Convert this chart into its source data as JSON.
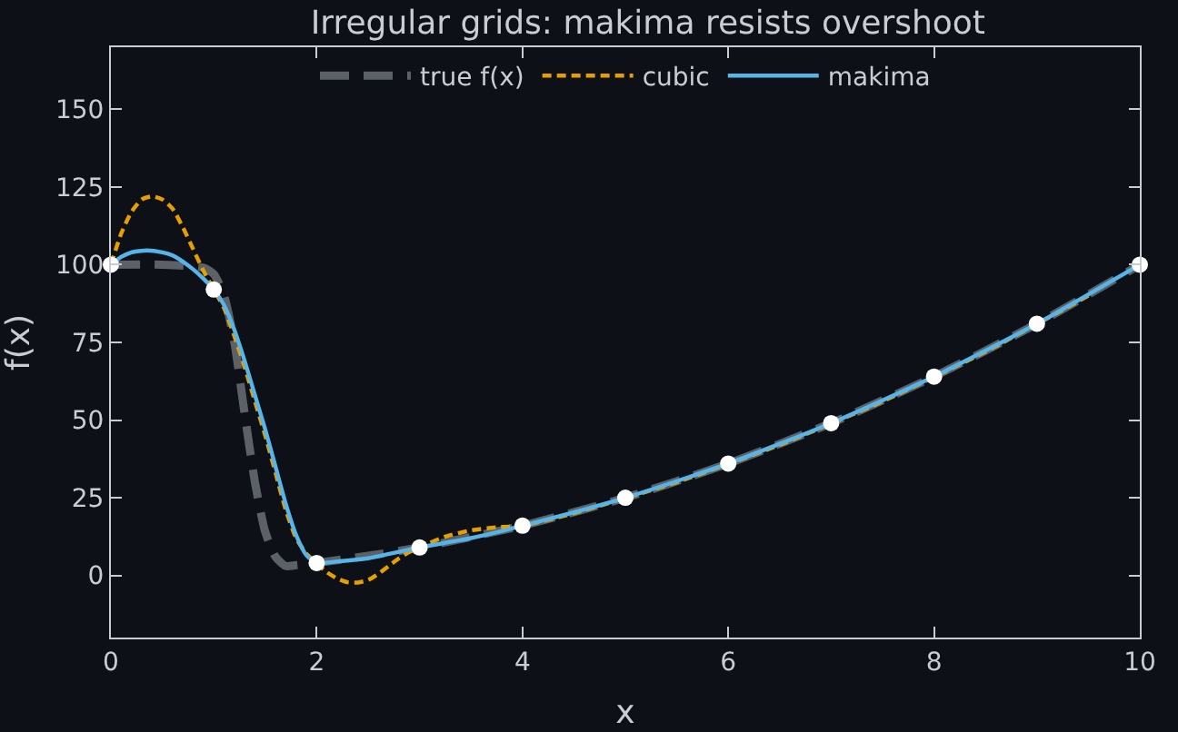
{
  "chart_data": {
    "type": "line",
    "title": "Irregular grids: makima resists overshoot",
    "xlabel": "x",
    "ylabel": "f(x)",
    "xlim": [
      0,
      10
    ],
    "xticks": [
      0,
      2,
      4,
      6,
      8,
      10
    ],
    "ylim": [
      -20,
      170
    ],
    "yticks": [
      0,
      25,
      50,
      75,
      100,
      125,
      150
    ],
    "grid": false,
    "legend": "top",
    "series": [
      {
        "name": "true f(x)",
        "color": "#5c6168",
        "line_style": "dashed",
        "x": [
          0,
          0.5,
          0.9,
          1.0,
          1.1,
          1.2,
          1.3,
          1.4,
          1.5,
          1.6,
          1.7,
          1.8,
          2,
          2.5,
          3,
          4,
          5,
          6,
          7,
          8,
          9,
          10
        ],
        "values": [
          100,
          100,
          99,
          97,
          90,
          75,
          52,
          30,
          14,
          6,
          3,
          3.3,
          4,
          6.3,
          9,
          16,
          25,
          36,
          49,
          64,
          81,
          100
        ]
      },
      {
        "name": "cubic",
        "color": "#e69f00",
        "line_style": "dashed",
        "x": [
          0,
          0.1,
          0.2,
          0.3,
          0.4,
          0.5,
          0.6,
          0.7,
          0.8,
          0.9,
          1,
          1.1,
          1.2,
          1.3,
          1.4,
          1.5,
          1.6,
          1.7,
          1.8,
          1.9,
          2,
          2.1,
          2.2,
          2.3,
          2.4,
          2.5,
          2.6,
          2.7,
          2.8,
          2.9,
          3,
          3.25,
          3.5,
          3.75,
          4,
          4.5,
          5.5,
          6.5,
          7.5,
          8.5,
          9.5
        ],
        "values": [
          100,
          110,
          117,
          121,
          122,
          121,
          118,
          112,
          105,
          98,
          92,
          86,
          77,
          67,
          56,
          45,
          33,
          21,
          12,
          7,
          4,
          1,
          -1,
          -2.2,
          -2.3,
          -1.5,
          0.5,
          3,
          5.5,
          7.5,
          9,
          12.5,
          14.5,
          15.5,
          16,
          20,
          30,
          42,
          56,
          72,
          90
        ]
      },
      {
        "name": "makima",
        "color": "#56b4e9",
        "line_style": "solid",
        "x": [
          0,
          0.1,
          0.2,
          0.35,
          0.5,
          0.6,
          0.7,
          0.8,
          0.9,
          1,
          1.1,
          1.2,
          1.3,
          1.4,
          1.5,
          1.6,
          1.7,
          1.8,
          1.9,
          2,
          2.2,
          2.5,
          3,
          3.5,
          4,
          5,
          6,
          7,
          8,
          9,
          10
        ],
        "values": [
          100,
          102.5,
          104,
          104.6,
          104,
          103,
          101,
          98.5,
          95.5,
          92,
          87,
          79,
          69,
          58,
          47,
          35,
          23,
          13,
          6.5,
          4,
          4.5,
          5.5,
          9,
          12,
          16,
          25,
          36,
          49,
          64,
          81,
          100
        ]
      },
      {
        "type": "scatter",
        "color": "#ffffff",
        "marker": "circle",
        "x": [
          0,
          1,
          2,
          3,
          4,
          5,
          6,
          7,
          8,
          9,
          10
        ],
        "values": [
          100,
          92,
          4,
          9,
          16,
          25,
          36,
          49,
          64,
          81,
          100
        ]
      }
    ]
  }
}
